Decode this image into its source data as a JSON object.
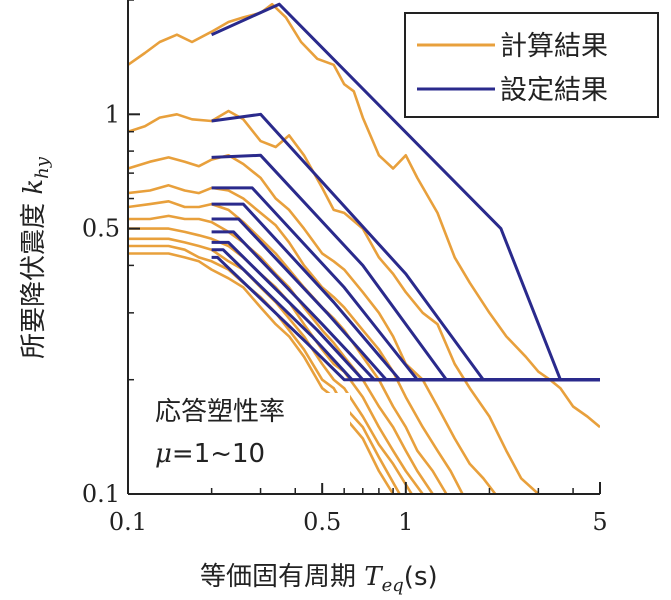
{
  "chart_data": {
    "type": "line",
    "xscale": "log",
    "yscale": "log",
    "xlim": [
      0.1,
      5
    ],
    "ylim": [
      0.1,
      2
    ],
    "xticks": [
      {
        "value": 0.1,
        "label": "0.1"
      },
      {
        "value": 0.5,
        "label": "0.5"
      },
      {
        "value": 1,
        "label": "1"
      },
      {
        "value": 5,
        "label": "5"
      }
    ],
    "yticks": [
      {
        "value": 0.1,
        "label": "0.1"
      },
      {
        "value": 0.5,
        "label": "0.5"
      },
      {
        "value": 1,
        "label": "1"
      }
    ],
    "xlabel_text": "等価固有周期 ",
    "xlabel_symbol": "T",
    "xlabel_sub": "eq",
    "xlabel_unit": "(s)",
    "ylabel_text": "所要降伏震度 ",
    "ylabel_symbol": "k",
    "ylabel_sub": "hy",
    "annotation_line1": "応答塑性率",
    "annotation_mu": "μ",
    "annotation_range": "=1~10",
    "legend": {
      "position": "top-right",
      "items": [
        {
          "label": "計算結果",
          "color": "#e8a03c"
        },
        {
          "label": "設定結果",
          "color": "#2a2a8c"
        }
      ]
    },
    "colors": {
      "computed": "#e8a03c",
      "design": "#2a2a8c"
    },
    "series": [
      {
        "name": "計算結果",
        "kind": "computed",
        "mu": 1,
        "x": [
          0.1,
          0.115,
          0.13,
          0.15,
          0.17,
          0.2,
          0.23,
          0.26,
          0.3,
          0.33,
          0.37,
          0.42,
          0.48,
          0.55,
          0.6,
          0.65,
          0.7,
          0.8,
          0.9,
          1.0,
          1.1,
          1.3,
          1.5,
          1.7,
          2.0,
          2.3,
          2.7,
          3.0,
          3.3,
          3.6,
          4.0,
          4.5,
          5.0
        ],
        "y": [
          1.35,
          1.45,
          1.55,
          1.62,
          1.55,
          1.65,
          1.75,
          1.8,
          1.85,
          1.95,
          1.8,
          1.55,
          1.4,
          1.35,
          1.2,
          1.15,
          0.98,
          0.78,
          0.72,
          0.78,
          0.68,
          0.55,
          0.42,
          0.36,
          0.3,
          0.26,
          0.23,
          0.21,
          0.2,
          0.19,
          0.17,
          0.16,
          0.15
        ]
      },
      {
        "name": "計算結果",
        "kind": "computed",
        "mu": 2,
        "x": [
          0.1,
          0.115,
          0.13,
          0.15,
          0.17,
          0.2,
          0.23,
          0.26,
          0.3,
          0.34,
          0.38,
          0.43,
          0.5,
          0.55,
          0.6,
          0.7,
          0.8,
          0.9,
          1.0,
          1.15,
          1.3,
          1.5,
          1.7,
          2.0,
          2.3,
          2.6,
          3.0
        ],
        "y": [
          0.9,
          0.93,
          0.98,
          1.0,
          0.97,
          0.96,
          1.02,
          0.97,
          0.85,
          0.82,
          0.88,
          0.78,
          0.64,
          0.56,
          0.55,
          0.5,
          0.42,
          0.38,
          0.34,
          0.3,
          0.28,
          0.22,
          0.19,
          0.16,
          0.13,
          0.11,
          0.1
        ]
      },
      {
        "name": "計算結果",
        "kind": "computed",
        "mu": 3,
        "x": [
          0.1,
          0.12,
          0.14,
          0.16,
          0.18,
          0.2,
          0.23,
          0.26,
          0.3,
          0.34,
          0.38,
          0.43,
          0.5,
          0.55,
          0.6,
          0.7,
          0.8,
          0.9,
          1.0,
          1.15,
          1.3,
          1.5,
          1.7,
          1.9,
          2.1
        ],
        "y": [
          0.72,
          0.75,
          0.77,
          0.75,
          0.73,
          0.76,
          0.78,
          0.74,
          0.68,
          0.6,
          0.56,
          0.5,
          0.43,
          0.41,
          0.39,
          0.34,
          0.3,
          0.26,
          0.22,
          0.2,
          0.17,
          0.14,
          0.12,
          0.11,
          0.1
        ]
      },
      {
        "name": "計算結果",
        "kind": "computed",
        "mu": 4,
        "x": [
          0.1,
          0.12,
          0.14,
          0.16,
          0.18,
          0.2,
          0.23,
          0.26,
          0.3,
          0.34,
          0.38,
          0.43,
          0.5,
          0.55,
          0.6,
          0.7,
          0.8,
          0.9,
          1.0,
          1.15,
          1.3,
          1.45,
          1.6
        ],
        "y": [
          0.62,
          0.63,
          0.65,
          0.63,
          0.62,
          0.64,
          0.63,
          0.6,
          0.55,
          0.51,
          0.46,
          0.4,
          0.35,
          0.33,
          0.31,
          0.27,
          0.24,
          0.21,
          0.18,
          0.15,
          0.13,
          0.115,
          0.1
        ]
      },
      {
        "name": "計算結果",
        "kind": "computed",
        "mu": 5,
        "x": [
          0.1,
          0.12,
          0.14,
          0.16,
          0.18,
          0.2,
          0.23,
          0.26,
          0.3,
          0.34,
          0.38,
          0.43,
          0.5,
          0.55,
          0.6,
          0.7,
          0.8,
          0.9,
          1.0,
          1.1,
          1.25,
          1.4
        ],
        "y": [
          0.57,
          0.58,
          0.59,
          0.57,
          0.57,
          0.58,
          0.56,
          0.52,
          0.47,
          0.43,
          0.39,
          0.35,
          0.31,
          0.29,
          0.27,
          0.23,
          0.2,
          0.17,
          0.15,
          0.13,
          0.115,
          0.1
        ]
      },
      {
        "name": "計算結果",
        "kind": "computed",
        "mu": 6,
        "x": [
          0.1,
          0.12,
          0.14,
          0.16,
          0.18,
          0.2,
          0.23,
          0.26,
          0.3,
          0.34,
          0.38,
          0.43,
          0.5,
          0.55,
          0.6,
          0.7,
          0.8,
          0.9,
          1.0,
          1.1,
          1.25
        ],
        "y": [
          0.53,
          0.53,
          0.54,
          0.53,
          0.53,
          0.52,
          0.49,
          0.46,
          0.42,
          0.38,
          0.35,
          0.31,
          0.27,
          0.25,
          0.23,
          0.2,
          0.17,
          0.15,
          0.13,
          0.115,
          0.1
        ]
      },
      {
        "name": "計算結果",
        "kind": "computed",
        "mu": 7,
        "x": [
          0.1,
          0.12,
          0.14,
          0.16,
          0.18,
          0.2,
          0.23,
          0.26,
          0.3,
          0.34,
          0.38,
          0.43,
          0.5,
          0.55,
          0.6,
          0.7,
          0.8,
          0.9,
          1.0,
          1.15
        ],
        "y": [
          0.5,
          0.5,
          0.5,
          0.49,
          0.48,
          0.47,
          0.45,
          0.42,
          0.38,
          0.35,
          0.32,
          0.28,
          0.24,
          0.22,
          0.21,
          0.18,
          0.15,
          0.13,
          0.115,
          0.1
        ]
      },
      {
        "name": "計算結果",
        "kind": "computed",
        "mu": 8,
        "x": [
          0.1,
          0.12,
          0.14,
          0.16,
          0.18,
          0.2,
          0.23,
          0.26,
          0.3,
          0.34,
          0.38,
          0.43,
          0.5,
          0.55,
          0.6,
          0.7,
          0.8,
          0.9,
          1.05
        ],
        "y": [
          0.47,
          0.47,
          0.47,
          0.46,
          0.45,
          0.44,
          0.41,
          0.39,
          0.35,
          0.32,
          0.29,
          0.26,
          0.22,
          0.2,
          0.19,
          0.16,
          0.135,
          0.12,
          0.1
        ]
      },
      {
        "name": "計算結果",
        "kind": "computed",
        "mu": 9,
        "x": [
          0.1,
          0.12,
          0.14,
          0.16,
          0.18,
          0.2,
          0.23,
          0.26,
          0.3,
          0.34,
          0.38,
          0.43,
          0.5,
          0.55,
          0.6,
          0.7,
          0.8,
          0.95
        ],
        "y": [
          0.45,
          0.45,
          0.45,
          0.44,
          0.42,
          0.41,
          0.39,
          0.36,
          0.33,
          0.3,
          0.27,
          0.24,
          0.2,
          0.19,
          0.17,
          0.15,
          0.125,
          0.1
        ]
      },
      {
        "name": "計算結果",
        "kind": "computed",
        "mu": 10,
        "x": [
          0.1,
          0.12,
          0.14,
          0.16,
          0.18,
          0.2,
          0.23,
          0.26,
          0.3,
          0.34,
          0.38,
          0.43,
          0.5,
          0.55,
          0.6,
          0.7,
          0.8,
          0.9
        ],
        "y": [
          0.43,
          0.43,
          0.43,
          0.42,
          0.41,
          0.39,
          0.37,
          0.35,
          0.31,
          0.28,
          0.26,
          0.23,
          0.19,
          0.18,
          0.16,
          0.14,
          0.115,
          0.1
        ]
      },
      {
        "name": "設定結果",
        "kind": "design",
        "mu": 1,
        "x": [
          0.2,
          0.35,
          2.2,
          3.6,
          5.0
        ],
        "y": [
          1.62,
          1.95,
          0.5,
          0.2,
          0.2
        ]
      },
      {
        "name": "設定結果",
        "kind": "design",
        "mu": 2,
        "x": [
          0.2,
          0.3,
          1.0,
          1.9,
          5.0
        ],
        "y": [
          0.96,
          1.0,
          0.38,
          0.2,
          0.2
        ]
      },
      {
        "name": "設定結果",
        "kind": "design",
        "mu": 3,
        "x": [
          0.2,
          0.3,
          0.7,
          1.4,
          5.0
        ],
        "y": [
          0.77,
          0.78,
          0.4,
          0.2,
          0.2
        ]
      },
      {
        "name": "設定結果",
        "kind": "design",
        "mu": 4,
        "x": [
          0.2,
          0.28,
          0.6,
          1.1,
          5.0
        ],
        "y": [
          0.64,
          0.64,
          0.35,
          0.2,
          0.2
        ]
      },
      {
        "name": "設定結果",
        "kind": "design",
        "mu": 5,
        "x": [
          0.2,
          0.26,
          0.55,
          0.95,
          5.0
        ],
        "y": [
          0.58,
          0.58,
          0.32,
          0.2,
          0.2
        ]
      },
      {
        "name": "設定結果",
        "kind": "design",
        "mu": 6,
        "x": [
          0.2,
          0.25,
          0.52,
          0.85,
          5.0
        ],
        "y": [
          0.53,
          0.53,
          0.3,
          0.2,
          0.2
        ]
      },
      {
        "name": "設定結果",
        "kind": "design",
        "mu": 7,
        "x": [
          0.2,
          0.24,
          0.5,
          0.77,
          5.0
        ],
        "y": [
          0.49,
          0.49,
          0.28,
          0.2,
          0.2
        ]
      },
      {
        "name": "設定結果",
        "kind": "design",
        "mu": 8,
        "x": [
          0.2,
          0.23,
          0.48,
          0.7,
          5.0
        ],
        "y": [
          0.46,
          0.46,
          0.27,
          0.2,
          0.2
        ]
      },
      {
        "name": "設定結果",
        "kind": "design",
        "mu": 9,
        "x": [
          0.2,
          0.22,
          0.46,
          0.64,
          5.0
        ],
        "y": [
          0.44,
          0.44,
          0.26,
          0.2,
          0.2
        ]
      },
      {
        "name": "設定結果",
        "kind": "design",
        "mu": 10,
        "x": [
          0.2,
          0.21,
          0.44,
          0.6,
          5.0
        ],
        "y": [
          0.42,
          0.42,
          0.25,
          0.2,
          0.2
        ]
      }
    ]
  }
}
